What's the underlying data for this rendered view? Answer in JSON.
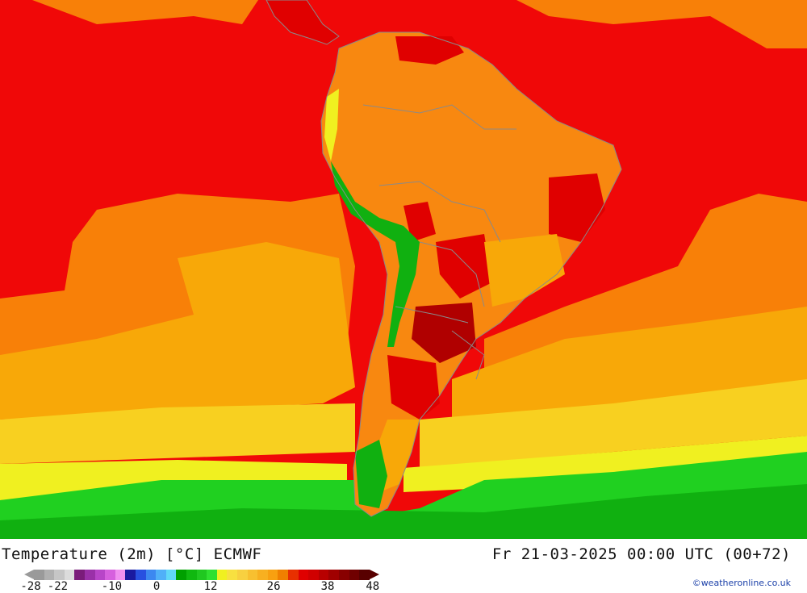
{
  "title": "Temperature (2m) [°C] ECMWF",
  "valid_time": "Fr 21-03-2025 00:00 UTC (00+72)",
  "credit": "©weatheronline.co.uk",
  "legend": {
    "min_label": "-28",
    "max_label": "48",
    "tick_labels": [
      "-28",
      "-22",
      "-10",
      "0",
      "12",
      "26",
      "38",
      "48"
    ],
    "tick_values": [
      -28,
      -22,
      -10,
      0,
      12,
      26,
      38,
      48
    ],
    "colors": [
      "#9a9a9a",
      "#b0b0b0",
      "#c6c6c6",
      "#dcdcdc",
      "#7a1c7a",
      "#9a30a8",
      "#b845c8",
      "#d660de",
      "#f090f0",
      "#1a1aa0",
      "#2850e0",
      "#3c88f0",
      "#50b0f8",
      "#60d8f8",
      "#00a000",
      "#10b810",
      "#20c820",
      "#30e030",
      "#f0f020",
      "#f8e040",
      "#f8d040",
      "#f8c030",
      "#f8b020",
      "#f8a010",
      "#f08000",
      "#e83000",
      "#e00000",
      "#d00000",
      "#b80000",
      "#a00000",
      "#880000",
      "#700000",
      "#580000"
    ]
  },
  "map_colors": {
    "ocean_hot": "#f00808",
    "ocean_warm": "#f88008",
    "ocean_mild": "#f8a808",
    "ocean_cool": "#f8d020",
    "ocean_cooler": "#f0f020",
    "ocean_cold": "#20d020",
    "ocean_colder": "#10b010",
    "land_warm": "#f88810",
    "land_hot": "#e00000",
    "land_very_hot": "#b00000",
    "andes_green": "#10b010",
    "border": "#8a8a8a"
  }
}
